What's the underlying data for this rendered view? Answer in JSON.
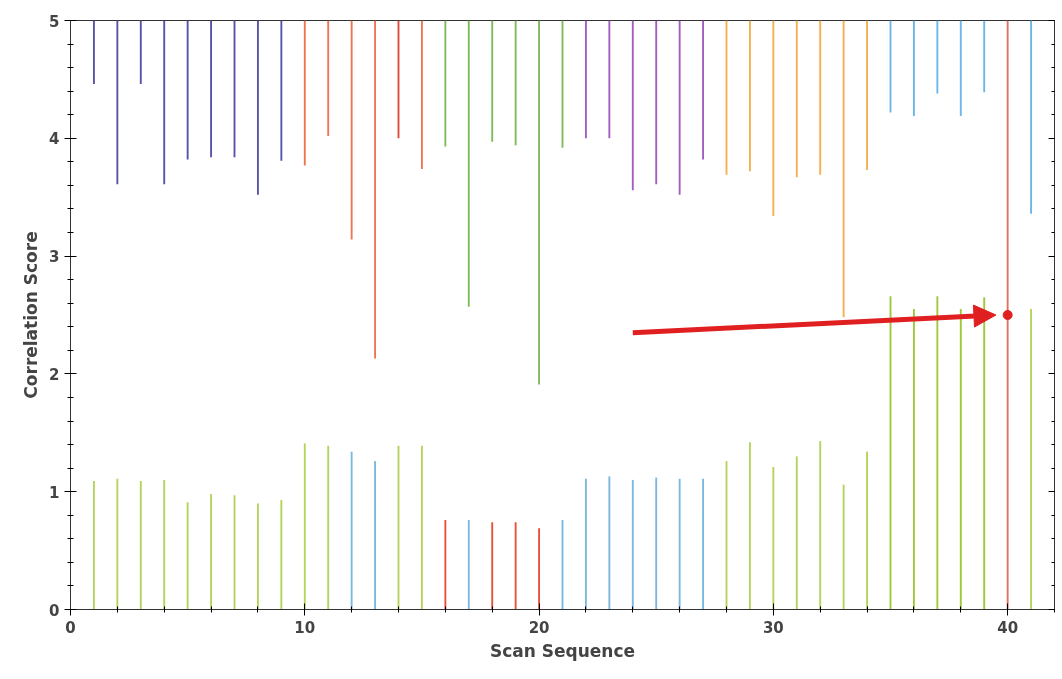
{
  "chart_data": {
    "type": "bar",
    "xlabel": "Scan Sequence",
    "ylabel": "Correlation Score",
    "x": [
      1,
      2,
      3,
      4,
      5,
      6,
      7,
      8,
      9,
      10,
      11,
      12,
      13,
      14,
      15,
      16,
      17,
      18,
      19,
      20,
      21,
      22,
      23,
      24,
      25,
      26,
      27,
      28,
      29,
      30,
      31,
      32,
      33,
      34,
      35,
      36,
      37,
      38,
      39,
      40,
      41
    ],
    "xlim": [
      0,
      42
    ],
    "xticks": [
      0,
      10,
      20,
      30,
      40
    ],
    "ylim": [
      0,
      5
    ],
    "yticks": [
      0,
      1,
      2,
      3,
      4,
      5
    ],
    "grid": false,
    "series": [
      {
        "values": [
          1.09,
          1.11,
          1.09,
          1.1,
          0.91,
          0.98,
          0.97,
          0.9,
          0.93,
          1.41,
          1.39,
          1.34,
          1.26,
          1.39,
          1.39,
          0.76,
          0.76,
          0.74,
          0.74,
          0.69,
          0.76,
          1.11,
          1.13,
          1.1,
          1.12,
          1.11,
          1.11,
          1.26,
          1.42,
          1.21,
          1.3,
          1.43,
          1.06,
          1.34,
          2.66,
          2.55,
          2.66,
          2.55,
          2.65,
          5,
          2.55
        ],
        "colors": [
          "#b5d35a",
          "#b5d35a",
          "#b5d35a",
          "#b5d35a",
          "#b5d35a",
          "#b5d35a",
          "#b5d35a",
          "#b5d35a",
          "#b5d35a",
          "#b5d35a",
          "#b5d35a",
          "#7ab8e0",
          "#7ab8e0",
          "#b5d35a",
          "#b5d35a",
          "#e8503a",
          "#7ab8e0",
          "#e8503a",
          "#e8503a",
          "#e8503a",
          "#7ab8e0",
          "#7ab8e0",
          "#7ab8e0",
          "#7ab8e0",
          "#7ab8e0",
          "#7ab8e0",
          "#7ab8e0",
          "#b5d35a",
          "#b5d35a",
          "#b5d35a",
          "#b5d35a",
          "#b5d35a",
          "#b5d35a",
          "#b5d35a",
          "#9cc83a",
          "#9cc83a",
          "#9cc83a",
          "#9cc83a",
          "#9cc83a",
          "#e07060",
          "#b5d35a"
        ]
      },
      {
        "base": [
          4.46,
          3.61,
          4.46,
          3.61,
          3.82,
          3.84,
          3.84,
          3.52,
          3.81,
          3.77,
          4.02,
          3.14,
          2.13,
          4.0,
          3.74,
          3.93,
          2.57,
          3.97,
          3.94,
          1.91,
          3.92,
          4.0,
          4.0,
          3.56,
          3.61,
          3.52,
          3.82,
          3.69,
          3.72,
          3.34,
          3.67,
          3.69,
          2.48,
          3.73,
          4.22,
          4.19,
          4.38,
          4.19,
          4.39,
          null,
          3.36
        ],
        "values": [
          0.54,
          1.39,
          0.54,
          1.39,
          1.18,
          1.16,
          1.16,
          1.48,
          1.19,
          1.23,
          0.98,
          1.86,
          2.87,
          1.0,
          1.26,
          1.07,
          2.43,
          1.03,
          1.06,
          3.09,
          1.08,
          1.0,
          1.0,
          1.44,
          1.39,
          1.48,
          1.18,
          1.31,
          1.28,
          1.66,
          1.33,
          1.31,
          2.52,
          1.27,
          0.78,
          0.81,
          0.62,
          0.81,
          0.61,
          null,
          1.64
        ],
        "colors": [
          "#5552a8",
          "#5552a8",
          "#5552a8",
          "#5552a8",
          "#5552a8",
          "#5552a8",
          "#5552a8",
          "#5552a8",
          "#5552a8",
          "#ee7550",
          "#ee7550",
          "#ee7550",
          "#ee7550",
          "#e04a3a",
          "#ee7550",
          "#7dbb5a",
          "#7dbb5a",
          "#7dbb5a",
          "#7dbb5a",
          "#7dbb5a",
          "#7dbb5a",
          "#a35cc0",
          "#a35cc0",
          "#a35cc0",
          "#a35cc0",
          "#a35cc0",
          "#a35cc0",
          "#f5b04e",
          "#f5b04e",
          "#f5b04e",
          "#f5b04e",
          "#f5b04e",
          "#f5b04e",
          "#f5b04e",
          "#6ab8e8",
          "#6ab8e8",
          "#6ab8e8",
          "#6ab8e8",
          "#6ab8e8",
          "#6ab8e8",
          "#6ab8e8"
        ]
      },
      {
        "type": "scatter",
        "x": [
          40
        ],
        "values": [
          2.5
        ],
        "color": "#e02020",
        "marker": "circle"
      }
    ]
  }
}
